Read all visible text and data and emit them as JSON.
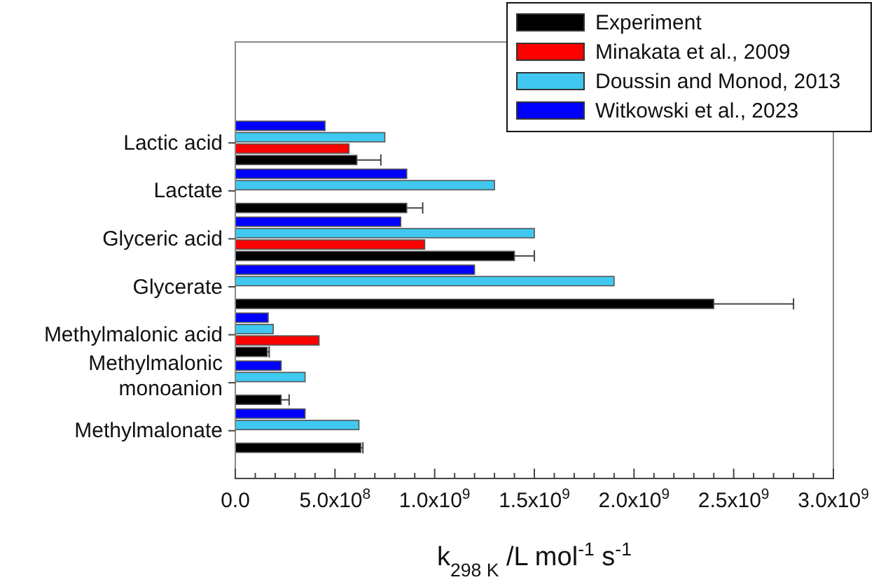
{
  "chart_data": {
    "type": "bar",
    "orientation": "horizontal",
    "categories": [
      "Lactic acid",
      "Lactate",
      "Glyceric acid",
      "Glycerate",
      "Methylmalonic acid",
      "Methylmalonic monoanion",
      "Methylmalonate"
    ],
    "series": [
      {
        "name": "Experiment",
        "color": "#000000",
        "values": [
          610000000,
          860000000,
          1400000000,
          2400000000,
          160000000,
          230000000,
          630000000
        ],
        "errors": [
          [
            610000000,
            730000000
          ],
          [
            860000000,
            940000000
          ],
          [
            1400000000,
            1500000000
          ],
          [
            2400000000,
            2800000000
          ],
          [
            160000000,
            170000000
          ],
          [
            230000000,
            270000000
          ],
          [
            630000000,
            640000000
          ]
        ]
      },
      {
        "name": "Minakata et al., 2009",
        "color": "#ff0000",
        "values": [
          570000000,
          null,
          950000000,
          null,
          420000000,
          null,
          null
        ]
      },
      {
        "name": "Doussin and Monod, 2013",
        "color": "#40c8f0",
        "values": [
          750000000,
          1300000000,
          1500000000,
          1900000000,
          190000000,
          350000000,
          620000000
        ]
      },
      {
        "name": "Witkowski et al., 2023",
        "color": "#0000ff",
        "values": [
          450000000,
          860000000,
          830000000,
          1200000000,
          165000000,
          230000000,
          350000000
        ]
      }
    ],
    "xlim": [
      0,
      3000000000
    ],
    "xticks": [
      {
        "value": 0,
        "label": "0.0"
      },
      {
        "value": 500000000,
        "label": "5.0x10$^{8}$"
      },
      {
        "value": 1000000000,
        "label": "1.0x10$^{9}$"
      },
      {
        "value": 1500000000,
        "label": "1.5x10$^{9}$"
      },
      {
        "value": 2000000000,
        "label": "2.0x10$^{9}$"
      },
      {
        "value": 2500000000,
        "label": "2.5x10$^{9}$"
      },
      {
        "value": 3000000000,
        "label": "3.0x10$^{9}$"
      }
    ],
    "xlabel": "k$_{298 K}$ /L mol$^{-1}$ s$^{-1}$",
    "legend": "top right",
    "grid": false
  }
}
